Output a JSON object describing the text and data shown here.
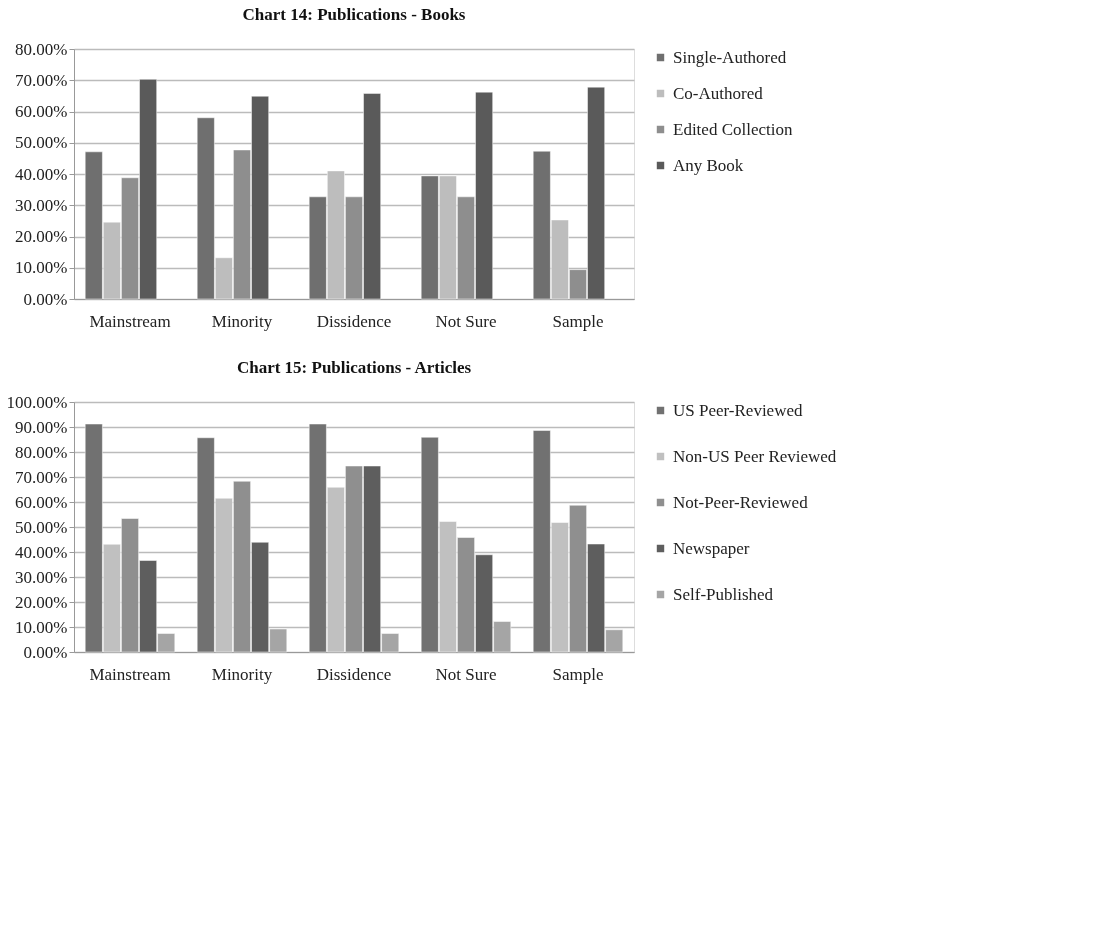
{
  "chart_data": [
    {
      "type": "bar",
      "title": "Chart 14: Publications - Books",
      "categories": [
        "Mainstream",
        "Minority",
        "Dissidence",
        "Not Sure",
        "Sample"
      ],
      "series": [
        {
          "name": "Single-Authored",
          "color": "#6f6f6f",
          "values": [
            47.1,
            58.0,
            32.7,
            39.4,
            47.3
          ]
        },
        {
          "name": "Co-Authored",
          "color": "#bdbdbd",
          "values": [
            24.6,
            13.2,
            41.0,
            39.4,
            25.3
          ]
        },
        {
          "name": "Edited Collection",
          "color": "#8e8e8e",
          "values": [
            38.8,
            47.7,
            32.7,
            32.7,
            9.4
          ]
        },
        {
          "name": "Any Book",
          "color": "#5a5a5a",
          "values": [
            70.3,
            64.9,
            65.8,
            66.2,
            67.8
          ]
        }
      ],
      "ylim": [
        0,
        80
      ],
      "yticks": [
        {
          "value": 0,
          "label": "0.00%"
        },
        {
          "value": 10,
          "label": "10.00%"
        },
        {
          "value": 20,
          "label": "20.00%"
        },
        {
          "value": 30,
          "label": "30.00%"
        },
        {
          "value": 40,
          "label": "40.00%"
        },
        {
          "value": 50,
          "label": "50.00%"
        },
        {
          "value": 60,
          "label": "60.00%"
        },
        {
          "value": 70,
          "label": "70.00%"
        },
        {
          "value": 80,
          "label": "80.00%"
        }
      ],
      "grid": "y",
      "legend": "right"
    },
    {
      "type": "bar",
      "title": "Chart 15: Publications - Articles",
      "categories": [
        "Mainstream",
        "Minority",
        "Dissidence",
        "Not Sure",
        "Sample"
      ],
      "series": [
        {
          "name": "US Peer-Reviewed",
          "color": "#717171",
          "values": [
            91.2,
            85.7,
            91.2,
            85.9,
            88.6
          ]
        },
        {
          "name": "Non-US Peer Reviewed",
          "color": "#c0c0c0",
          "values": [
            43.1,
            61.5,
            65.9,
            52.2,
            51.8
          ]
        },
        {
          "name": "Not-Peer-Reviewed",
          "color": "#8f8f8f",
          "values": [
            53.4,
            68.3,
            74.4,
            45.8,
            58.7
          ]
        },
        {
          "name": "Newspaper",
          "color": "#5e5e5e",
          "values": [
            36.6,
            43.9,
            74.4,
            38.9,
            43.2
          ]
        },
        {
          "name": "Self-Published",
          "color": "#a5a5a5",
          "values": [
            7.4,
            9.2,
            7.4,
            12.2,
            8.9
          ]
        }
      ],
      "ylim": [
        0,
        100
      ],
      "yticks": [
        {
          "value": 0,
          "label": "0.00%"
        },
        {
          "value": 10,
          "label": "10.00%"
        },
        {
          "value": 20,
          "label": "20.00%"
        },
        {
          "value": 30,
          "label": "30.00%"
        },
        {
          "value": 40,
          "label": "40.00%"
        },
        {
          "value": 50,
          "label": "50.00%"
        },
        {
          "value": 60,
          "label": "60.00%"
        },
        {
          "value": 70,
          "label": "70.00%"
        },
        {
          "value": 80,
          "label": "80.00%"
        },
        {
          "value": 90,
          "label": "90.00%"
        },
        {
          "value": 100,
          "label": "100.00%"
        }
      ],
      "grid": "y",
      "legend": "right"
    }
  ]
}
